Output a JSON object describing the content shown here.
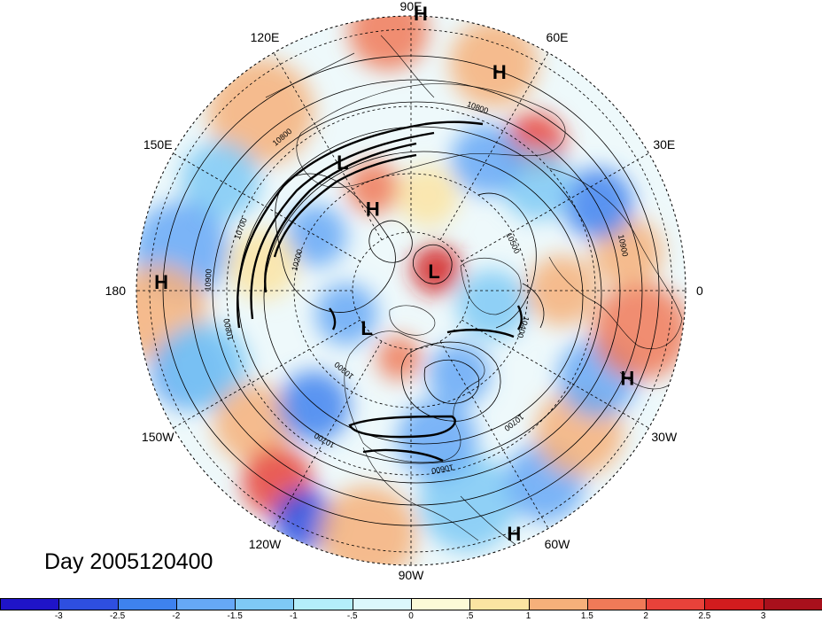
{
  "caption": "Day 2005120400",
  "longitude_labels": [
    {
      "text": "90E",
      "angle": 90
    },
    {
      "text": "60E",
      "angle": 60
    },
    {
      "text": "30E",
      "angle": 30
    },
    {
      "text": "0",
      "angle": 0
    },
    {
      "text": "30W",
      "angle": -30
    },
    {
      "text": "60W",
      "angle": -60
    },
    {
      "text": "90W",
      "angle": -90
    },
    {
      "text": "120W",
      "angle": -120
    },
    {
      "text": "150W",
      "angle": -150
    },
    {
      "text": "180",
      "angle": 180
    },
    {
      "text": "150E",
      "angle": 150
    },
    {
      "text": "120E",
      "angle": 120
    }
  ],
  "pressure_centers": [
    {
      "label": "H",
      "angle": 88,
      "r": 1.01
    },
    {
      "label": "H",
      "angle": 68,
      "r": 0.86
    },
    {
      "label": "H",
      "angle": 115,
      "r": 0.33
    },
    {
      "label": "L",
      "angle": 118,
      "r": 0.53
    },
    {
      "label": "L",
      "angle": 40,
      "r": 0.11
    },
    {
      "label": "L",
      "angle": -140,
      "r": 0.21
    },
    {
      "label": "H",
      "angle": 178,
      "r": 0.91
    },
    {
      "label": "H",
      "angle": -22,
      "r": 0.85
    },
    {
      "label": "H",
      "angle": -67,
      "r": 0.96
    }
  ],
  "contour_labels": [
    {
      "text": "10800",
      "angle": 70,
      "r": 0.7
    },
    {
      "text": "10800",
      "angle": 130,
      "r": 0.72
    },
    {
      "text": "10900",
      "angle": 12,
      "r": 0.78
    },
    {
      "text": "10900",
      "angle": 177,
      "r": 0.73
    },
    {
      "text": "10800",
      "angle": -168,
      "r": 0.67
    },
    {
      "text": "10700",
      "angle": -120,
      "r": 0.62
    },
    {
      "text": "10700",
      "angle": -52,
      "r": 0.6
    },
    {
      "text": "10600",
      "angle": -80,
      "r": 0.65
    },
    {
      "text": "10400",
      "angle": -18,
      "r": 0.42
    },
    {
      "text": "10300",
      "angle": -130,
      "r": 0.37
    },
    {
      "text": "10200",
      "angle": 165,
      "r": 0.42
    },
    {
      "text": "10700",
      "angle": 160,
      "r": 0.65
    },
    {
      "text": "10500",
      "angle": 25,
      "r": 0.4
    }
  ],
  "colorbar": {
    "ticks": [
      "-3",
      "-2.5",
      "-2",
      "-1.5",
      "-1",
      "-.5",
      "0",
      ".5",
      "1",
      "1.5",
      "2",
      "2.5",
      "3"
    ],
    "colors": [
      "#1f14c8",
      "#2e4fe0",
      "#3e82ee",
      "#66a8f6",
      "#7ec9f5",
      "#b4eefa",
      "#dcf8fc",
      "#fcfad7",
      "#fbe4a2",
      "#f6b07a",
      "#f07a58",
      "#e8423a",
      "#d21c1e",
      "#a8101c"
    ]
  }
}
